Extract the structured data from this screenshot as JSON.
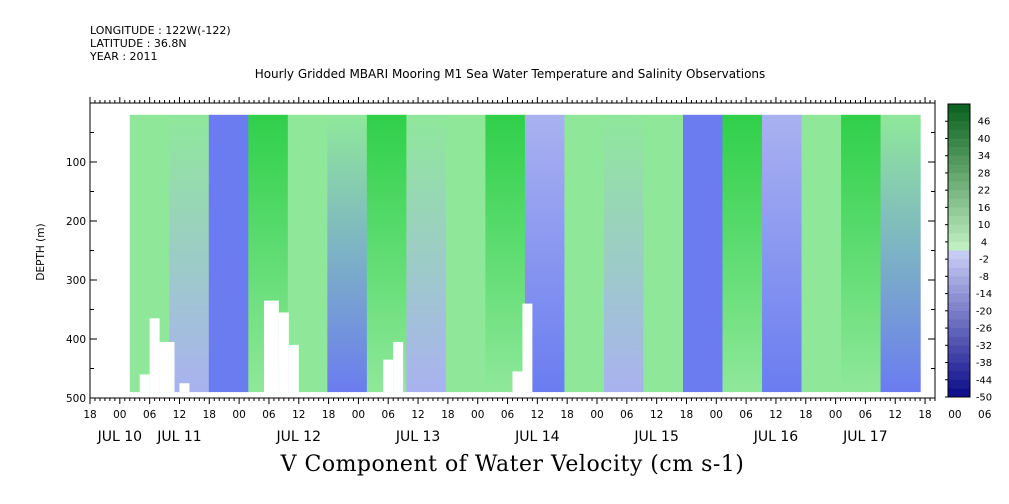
{
  "header": {
    "longitude": "LONGITUDE : 122W(-122)",
    "latitude": "LATITUDE : 36.8N",
    "year": "YEAR : 2011"
  },
  "colors": {
    "strong_positive": "#0a5c1e",
    "positive": "#2fd04a",
    "weak_positive": "#8fe89a",
    "weak_negative": "#a9b2f0",
    "negative": "#6a7cf0",
    "strong_negative": "#10158a",
    "missing": "#ffffff"
  },
  "chart_data": {
    "type": "heatmap",
    "title": "Hourly Gridded MBARI Mooring M1 Sea Water Temperature and Salinity Observations",
    "xlabel": "V Component of Water Velocity (cm s-1)",
    "ylabel": "DEPTH (m)",
    "xlim": [
      "2011-07-10 18:00",
      "2011-07-17 20:00"
    ],
    "ylim": [
      500,
      0
    ],
    "x_hour_ticks": [
      "18",
      "00",
      "06",
      "12",
      "18",
      "00",
      "06",
      "12",
      "18",
      "00",
      "06",
      "12",
      "18",
      "00",
      "06",
      "12",
      "18",
      "00",
      "06",
      "12",
      "18",
      "00",
      "06",
      "12",
      "18",
      "00",
      "06",
      "12",
      "18",
      "00",
      "06",
      "12",
      "18"
    ],
    "x_date_labels": [
      {
        "label": "JUL 10",
        "at": "2011-07-11 00:00"
      },
      {
        "label": "JUL 11",
        "at": "2011-07-11 12:00"
      },
      {
        "label": "JUL 12",
        "at": "2011-07-12 12:00"
      },
      {
        "label": "JUL 13",
        "at": "2011-07-13 12:00"
      },
      {
        "label": "JUL 14",
        "at": "2011-07-14 12:00"
      },
      {
        "label": "JUL 15",
        "at": "2011-07-15 12:00"
      },
      {
        "label": "JUL 16",
        "at": "2011-07-16 12:00"
      },
      {
        "label": "JUL 17",
        "at": "2011-07-17 06:00"
      }
    ],
    "y_ticks": [
      100,
      200,
      300,
      400,
      500
    ],
    "y_minor_ticks": [
      50,
      150,
      250,
      350,
      450
    ],
    "colorbar": {
      "ticks": [
        46,
        40,
        34,
        28,
        22,
        16,
        10,
        4,
        -2,
        -8,
        -14,
        -20,
        -26,
        -32,
        -38,
        -44,
        -50
      ],
      "range": [
        -50,
        52
      ]
    },
    "data_coverage": {
      "start": "2011-07-11 02:00",
      "end": "2011-07-17 17:00",
      "depth_range": [
        20,
        490
      ]
    },
    "profiles": [
      {
        "time": "2011-07-11 04:00",
        "v_upper": 8,
        "v_lower": 2
      },
      {
        "time": "2011-07-11 12:00",
        "v_upper": 2,
        "v_lower": -6
      },
      {
        "time": "2011-07-11 20:00",
        "v_upper": -10,
        "v_lower": -12
      },
      {
        "time": "2011-07-12 04:00",
        "v_upper": 16,
        "v_lower": 6
      },
      {
        "time": "2011-07-12 12:00",
        "v_upper": 8,
        "v_lower": 4
      },
      {
        "time": "2011-07-12 20:00",
        "v_upper": 2,
        "v_lower": -8
      },
      {
        "time": "2011-07-13 04:00",
        "v_upper": 12,
        "v_lower": 6
      },
      {
        "time": "2011-07-13 12:00",
        "v_upper": 6,
        "v_lower": -6
      },
      {
        "time": "2011-07-13 20:00",
        "v_upper": 4,
        "v_lower": 2
      },
      {
        "time": "2011-07-14 04:00",
        "v_upper": 14,
        "v_lower": 4
      },
      {
        "time": "2011-07-14 12:00",
        "v_upper": -6,
        "v_lower": -8
      },
      {
        "time": "2011-07-14 20:00",
        "v_upper": 6,
        "v_lower": 8
      },
      {
        "time": "2011-07-15 04:00",
        "v_upper": 8,
        "v_lower": -6
      },
      {
        "time": "2011-07-15 12:00",
        "v_upper": 4,
        "v_lower": 4
      },
      {
        "time": "2011-07-15 20:00",
        "v_upper": -8,
        "v_lower": -10
      },
      {
        "time": "2011-07-16 04:00",
        "v_upper": 10,
        "v_lower": 6
      },
      {
        "time": "2011-07-16 12:00",
        "v_upper": -4,
        "v_lower": -12
      },
      {
        "time": "2011-07-16 20:00",
        "v_upper": 2,
        "v_lower": 4
      },
      {
        "time": "2011-07-17 04:00",
        "v_upper": 14,
        "v_lower": 6
      },
      {
        "time": "2011-07-17 12:00",
        "v_upper": 8,
        "v_lower": -10
      }
    ],
    "missing_regions": [
      {
        "t0": "2011-07-11 04:00",
        "t1": "2011-07-11 06:00",
        "d0": 460,
        "d1": 490
      },
      {
        "t0": "2011-07-11 06:00",
        "t1": "2011-07-11 08:00",
        "d0": 365,
        "d1": 490
      },
      {
        "t0": "2011-07-11 08:00",
        "t1": "2011-07-11 11:00",
        "d0": 405,
        "d1": 490
      },
      {
        "t0": "2011-07-11 12:00",
        "t1": "2011-07-11 14:00",
        "d0": 475,
        "d1": 490
      },
      {
        "t0": "2011-07-12 05:00",
        "t1": "2011-07-12 08:00",
        "d0": 335,
        "d1": 490
      },
      {
        "t0": "2011-07-12 08:00",
        "t1": "2011-07-12 10:00",
        "d0": 355,
        "d1": 490
      },
      {
        "t0": "2011-07-12 10:00",
        "t1": "2011-07-12 12:00",
        "d0": 410,
        "d1": 490
      },
      {
        "t0": "2011-07-13 05:00",
        "t1": "2011-07-13 07:00",
        "d0": 435,
        "d1": 490
      },
      {
        "t0": "2011-07-13 07:00",
        "t1": "2011-07-13 09:00",
        "d0": 405,
        "d1": 490
      },
      {
        "t0": "2011-07-14 09:00",
        "t1": "2011-07-14 11:00",
        "d0": 340,
        "d1": 490
      },
      {
        "t0": "2011-07-14 07:00",
        "t1": "2011-07-14 09:00",
        "d0": 455,
        "d1": 490
      }
    ]
  }
}
